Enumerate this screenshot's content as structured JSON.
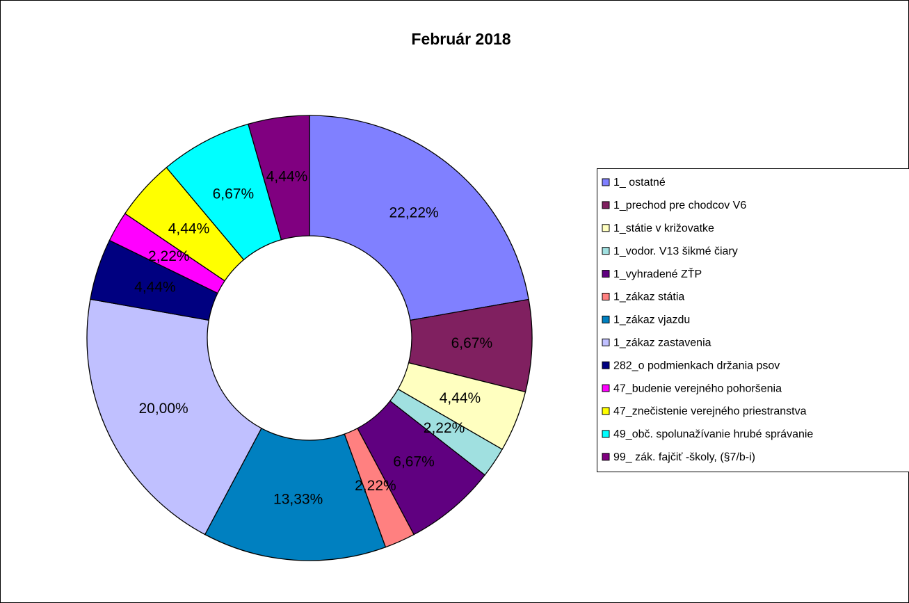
{
  "chart_data": {
    "type": "donut",
    "title": "Február 2018",
    "categories": [
      "1_ ostatné",
      "1_prechod pre chodcov V6",
      "1_státie v križovatke",
      "1_vodor. V13 šikmé čiary",
      "1_vyhradené ZŤP",
      "1_zákaz státia",
      "1_zákaz vjazdu",
      "1_zákaz zastavenia",
      "282_o podmienkach držania psov",
      "47_budenie verejného pohoršenia",
      "47_znečistenie verejného priestranstva",
      "49_obč. spolunažívanie hrubé správanie",
      "99_ zák. fajčiť -školy, (§7/b-i)"
    ],
    "values": [
      22.22,
      6.67,
      4.44,
      2.22,
      6.67,
      2.22,
      13.33,
      20.0,
      4.44,
      2.22,
      4.44,
      6.67,
      4.44
    ],
    "value_labels": [
      "22,22%",
      "6,67%",
      "4,44%",
      "2,22%",
      "6,67%",
      "2,22%",
      "13,33%",
      "20,00%",
      "4,44%",
      "2,22%",
      "4,44%",
      "6,67%",
      "4,44%"
    ],
    "colors": [
      "#8080ff",
      "#802060",
      "#ffffc0",
      "#a0e0e0",
      "#600080",
      "#ff8080",
      "#0080c0",
      "#c0c0ff",
      "#000080",
      "#ff00ff",
      "#ffff00",
      "#00ffff",
      "#800080"
    ],
    "legend": "right"
  }
}
